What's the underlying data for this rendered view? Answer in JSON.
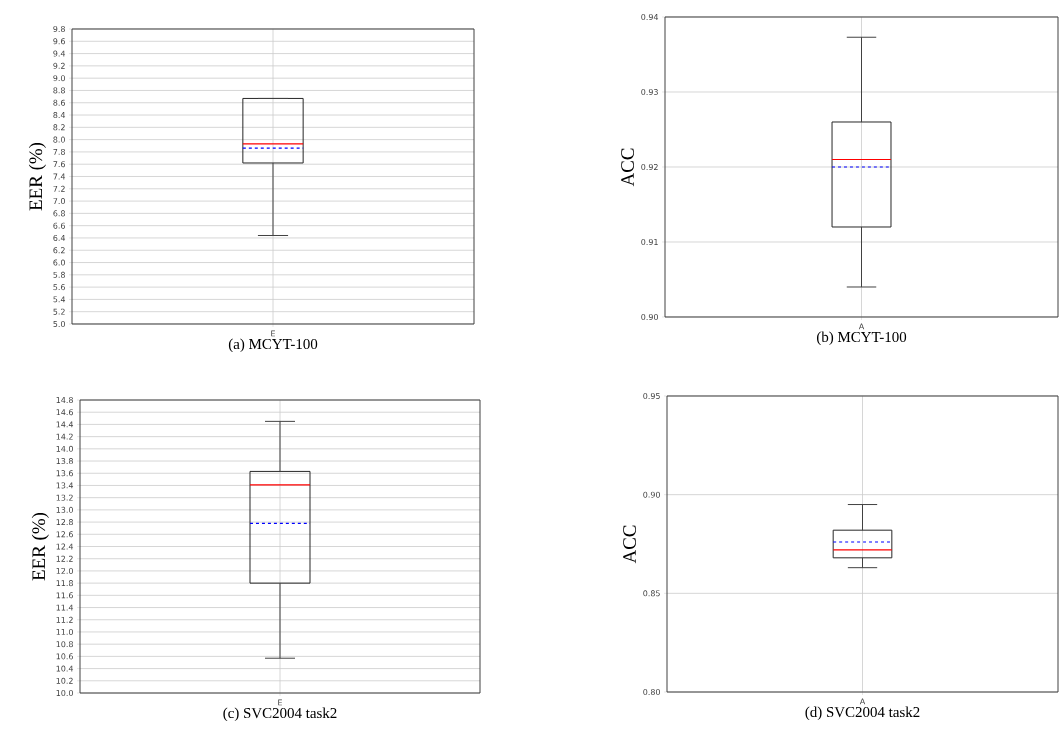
{
  "chart_data": [
    {
      "type": "box",
      "title": "(a) MCYT-100",
      "ylabel": "EER (%)",
      "categories": [
        "E"
      ],
      "grid": true,
      "boxes": [
        {
          "low": 6.44,
          "q1": 7.62,
          "median": 7.93,
          "q3": 8.67,
          "high": 8.67,
          "mean": 7.86
        }
      ],
      "ylim": [
        5.0,
        9.8
      ],
      "yticks": [
        {
          "value": 5.0,
          "label": "5.0"
        },
        5.2,
        5.4,
        5.6,
        5.8,
        {
          "value": 6.0,
          "label": "6.0"
        },
        6.2,
        6.4,
        6.6,
        6.8,
        {
          "value": 7.0,
          "label": "7.0"
        },
        7.2,
        7.4,
        7.6,
        7.8,
        {
          "value": 8.0,
          "label": "8.0"
        },
        8.2,
        8.4,
        8.6,
        8.8,
        {
          "value": 9.0,
          "label": "9.0"
        },
        9.2,
        9.4,
        9.6,
        9.8
      ]
    },
    {
      "type": "box",
      "title": "(b) MCYT-100",
      "ylabel": "ACC",
      "categories": [
        "A"
      ],
      "grid": true,
      "boxes": [
        {
          "low": 0.904,
          "q1": 0.912,
          "median": 0.921,
          "q3": 0.926,
          "high": 0.9373,
          "mean": 0.92
        }
      ],
      "ylim": [
        0.9,
        0.94
      ],
      "yticks": [
        {
          "value": 0.9,
          "label": "0.90"
        },
        0.91,
        0.92,
        0.93,
        0.94
      ]
    },
    {
      "type": "box",
      "title": "(c) SVC2004 task2",
      "ylabel": "EER (%)",
      "categories": [
        "E"
      ],
      "grid": true,
      "boxes": [
        {
          "low": 10.57,
          "q1": 11.8,
          "median": 13.41,
          "q3": 13.63,
          "high": 14.45,
          "mean": 12.78
        }
      ],
      "ylim": [
        10.0,
        14.8
      ],
      "yticks": [
        {
          "value": 10.0,
          "label": "10.0"
        },
        10.2,
        10.4,
        10.6,
        10.8,
        {
          "value": 11.0,
          "label": "11.0"
        },
        11.2,
        11.4,
        11.6,
        11.8,
        {
          "value": 12.0,
          "label": "12.0"
        },
        12.2,
        12.4,
        12.6,
        12.8,
        {
          "value": 13.0,
          "label": "13.0"
        },
        13.2,
        13.4,
        13.6,
        13.8,
        {
          "value": 14.0,
          "label": "14.0"
        },
        14.2,
        14.4,
        14.6,
        14.8
      ]
    },
    {
      "type": "box",
      "title": "(d) SVC2004 task2",
      "ylabel": "ACC",
      "categories": [
        "A"
      ],
      "grid": true,
      "boxes": [
        {
          "low": 0.863,
          "q1": 0.868,
          "median": 0.872,
          "q3": 0.882,
          "high": 0.895,
          "mean": 0.876
        }
      ],
      "ylim": [
        0.8,
        0.95
      ],
      "yticks": [
        {
          "value": 0.8,
          "label": "0.80"
        },
        {
          "value": 0.85,
          "label": "0.85"
        },
        {
          "value": 0.9,
          "label": "0.90"
        },
        {
          "value": 0.95,
          "label": "0.95"
        }
      ]
    }
  ]
}
